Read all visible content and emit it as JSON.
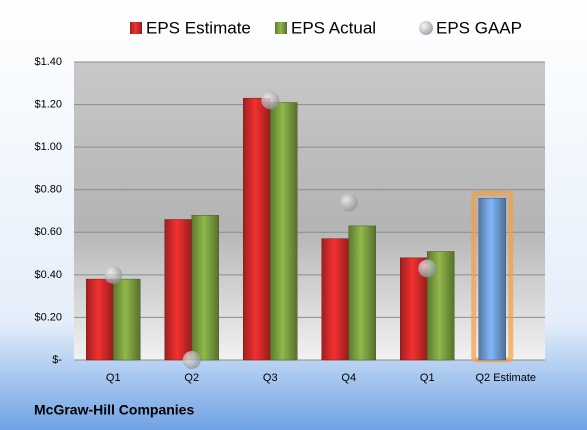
{
  "chart_data": {
    "type": "bar",
    "caption": "McGraw-Hill Companies",
    "categories": [
      "Q1",
      "Q2",
      "Q3",
      "Q4",
      "Q1",
      "Q2 Estimate"
    ],
    "series": [
      {
        "name": "EPS Estimate",
        "color": "#d42a2a",
        "colors": [
          "#d42a2a",
          "#d42a2a",
          "#d42a2a",
          "#d42a2a",
          "#d42a2a",
          "#6f9fd8"
        ],
        "values": [
          0.38,
          0.66,
          1.23,
          0.57,
          0.48,
          0.76
        ]
      },
      {
        "name": "EPS Actual",
        "color": "#7da040",
        "values": [
          0.38,
          0.68,
          1.21,
          0.63,
          0.51,
          null
        ]
      },
      {
        "name": "EPS GAAP",
        "color": "#b0b4b8",
        "marker": "circle",
        "values": [
          0.4,
          0.0,
          1.22,
          0.74,
          0.43,
          null
        ]
      }
    ],
    "ylim": [
      0,
      1.4
    ],
    "yticks": [
      {
        "value": 0,
        "label": "$-"
      },
      {
        "value": 0.2,
        "label": "$0.20"
      },
      {
        "value": 0.4,
        "label": "$0.40"
      },
      {
        "value": 0.6,
        "label": "$0.60"
      },
      {
        "value": 0.8,
        "label": "$0.80"
      },
      {
        "value": 1.0,
        "label": "$1.00"
      },
      {
        "value": 1.2,
        "label": "$1.20"
      },
      {
        "value": 1.4,
        "label": "$1.40"
      }
    ],
    "grid": true
  }
}
